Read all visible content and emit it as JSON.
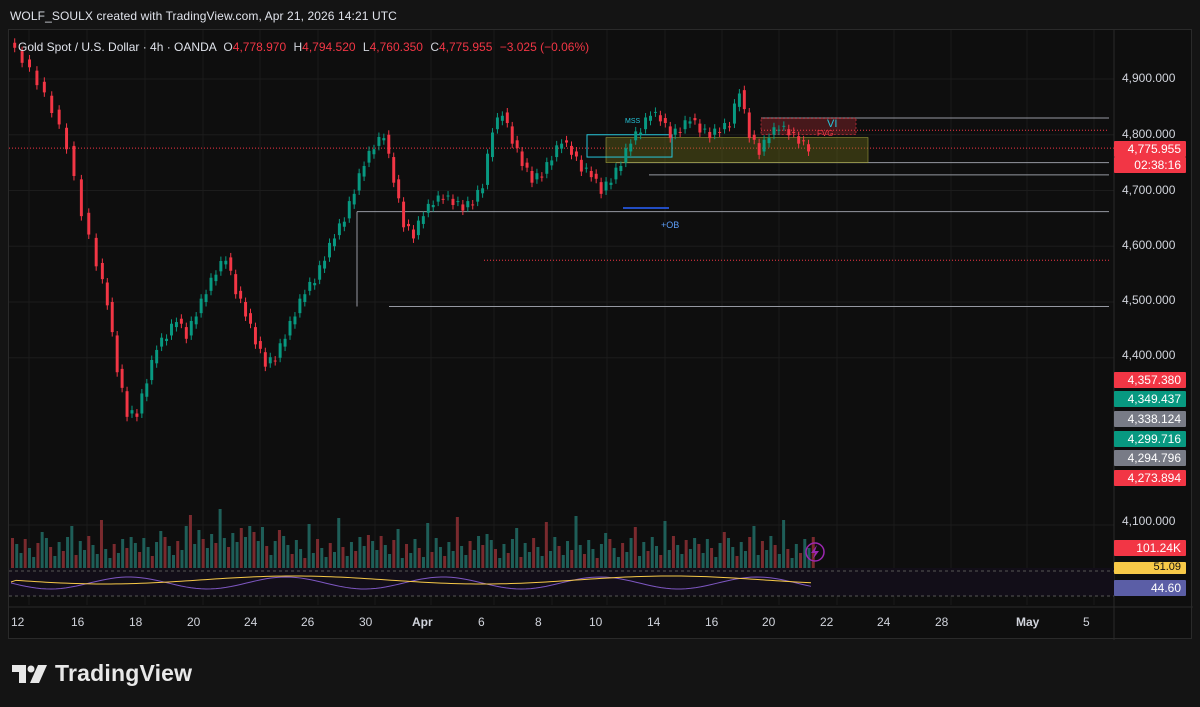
{
  "header": {
    "created_by": "WOLF_SOULX created with TradingView.com, Apr 21, 2026 14:21 UTC"
  },
  "legend": {
    "symbol": "Gold Spot / U.S. Dollar · 4h · OANDA",
    "o_label": "O",
    "o_value": "4,778.970",
    "h_label": "H",
    "h_value": "4,794.520",
    "l_label": "L",
    "l_value": "4,760.350",
    "c_label": "C",
    "c_value": "4,775.955",
    "change": "−3.025 (−0.06%)"
  },
  "price_axis": {
    "labels": [
      "4,900.000",
      "4,800.000",
      "4,700.000",
      "4,600.000",
      "4,500.000",
      "4,400.000",
      "4,100.000"
    ]
  },
  "price_tags": [
    {
      "id": "last",
      "text": "4,775.955",
      "color": "#f23645"
    },
    {
      "id": "countdown",
      "text": "02:38:16",
      "color": "#f23645"
    },
    {
      "id": "t1",
      "text": "4,357.380",
      "color": "#f23645"
    },
    {
      "id": "t2",
      "text": "4,349.437",
      "color": "#089981"
    },
    {
      "id": "t3",
      "text": "4,338.124",
      "color": "#787b86"
    },
    {
      "id": "t4",
      "text": "4,299.716",
      "color": "#089981"
    },
    {
      "id": "t5",
      "text": "4,294.796",
      "color": "#787b86"
    },
    {
      "id": "t6",
      "text": "4,273.894",
      "color": "#f23645"
    },
    {
      "id": "volume",
      "text": "101.24K",
      "color": "#f23645"
    },
    {
      "id": "ind1",
      "text": "51.09",
      "color": "#f7c948"
    },
    {
      "id": "ind2",
      "text": "44.60",
      "color": "#5b5ea6"
    }
  ],
  "annotations": {
    "mss": "MSS",
    "ob": "+OB",
    "vi": "VI",
    "fvg": "FVG"
  },
  "time_axis": {
    "labels": [
      "12",
      "16",
      "18",
      "20",
      "24",
      "26",
      "30",
      "Apr",
      "6",
      "8",
      "10",
      "14",
      "16",
      "20",
      "22",
      "24",
      "28",
      "May",
      "5"
    ]
  },
  "chart_data": {
    "type": "candlestick",
    "title": "Gold Spot / U.S. Dollar · 4h · OANDA",
    "xlabel": "",
    "ylabel": "",
    "ylim": [
      4100,
      4950
    ],
    "last_price": 4775.955,
    "levels": [
      4830,
      4808,
      4797,
      4790,
      4750,
      4728,
      4662,
      4575,
      4492
    ],
    "price_points": [
      [
        0,
        4965
      ],
      [
        3,
        4935
      ],
      [
        6,
        4895
      ],
      [
        9,
        4845
      ],
      [
        12,
        4780
      ],
      [
        15,
        4660
      ],
      [
        18,
        4570
      ],
      [
        20,
        4500
      ],
      [
        22,
        4380
      ],
      [
        24,
        4300
      ],
      [
        26,
        4300
      ],
      [
        28,
        4360
      ],
      [
        30,
        4420
      ],
      [
        32,
        4440
      ],
      [
        34,
        4470
      ],
      [
        36,
        4440
      ],
      [
        38,
        4480
      ],
      [
        40,
        4520
      ],
      [
        42,
        4555
      ],
      [
        44,
        4580
      ],
      [
        46,
        4520
      ],
      [
        48,
        4480
      ],
      [
        50,
        4430
      ],
      [
        52,
        4390
      ],
      [
        54,
        4400
      ],
      [
        56,
        4440
      ],
      [
        58,
        4480
      ],
      [
        60,
        4520
      ],
      [
        62,
        4540
      ],
      [
        64,
        4580
      ],
      [
        66,
        4620
      ],
      [
        68,
        4650
      ],
      [
        70,
        4700
      ],
      [
        72,
        4750
      ],
      [
        74,
        4780
      ],
      [
        76,
        4800
      ],
      [
        78,
        4720
      ],
      [
        80,
        4640
      ],
      [
        82,
        4620
      ],
      [
        84,
        4660
      ],
      [
        86,
        4680
      ],
      [
        88,
        4690
      ],
      [
        90,
        4680
      ],
      [
        92,
        4670
      ],
      [
        94,
        4680
      ],
      [
        96,
        4710
      ],
      [
        98,
        4810
      ],
      [
        100,
        4840
      ],
      [
        102,
        4790
      ],
      [
        104,
        4750
      ],
      [
        106,
        4720
      ],
      [
        108,
        4730
      ],
      [
        110,
        4760
      ],
      [
        112,
        4790
      ],
      [
        114,
        4770
      ],
      [
        116,
        4740
      ],
      [
        118,
        4730
      ],
      [
        120,
        4700
      ],
      [
        122,
        4720
      ],
      [
        124,
        4750
      ],
      [
        126,
        4790
      ],
      [
        128,
        4810
      ],
      [
        130,
        4840
      ],
      [
        132,
        4830
      ],
      [
        134,
        4800
      ],
      [
        136,
        4810
      ],
      [
        138,
        4830
      ],
      [
        140,
        4810
      ],
      [
        142,
        4800
      ],
      [
        144,
        4810
      ],
      [
        146,
        4820
      ],
      [
        148,
        4880
      ],
      [
        150,
        4800
      ],
      [
        152,
        4770
      ],
      [
        154,
        4800
      ],
      [
        156,
        4815
      ],
      [
        158,
        4805
      ],
      [
        160,
        4790
      ],
      [
        162,
        4776
      ]
    ],
    "volume_max": 120
  }
}
